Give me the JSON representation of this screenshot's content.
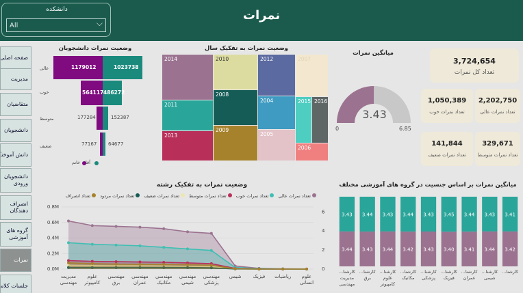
{
  "header": {
    "title": "نمرات"
  },
  "slicer": {
    "label": "دانشکده",
    "value": "All"
  },
  "nav": [
    {
      "label": "صفحه اصلی"
    },
    {
      "label": "مدیریت"
    },
    {
      "label": "متقاضیان"
    },
    {
      "label": "دانشجویان"
    },
    {
      "label": "دانش آموختگان"
    },
    {
      "label": "دانشجویان ورودی"
    },
    {
      "label": "انصراف دهندگان"
    },
    {
      "label": "گروه های آموزشی"
    },
    {
      "label": "نمرات"
    },
    {
      "label": "جلسات کلاس"
    }
  ],
  "funnel": {
    "title": "وضعیت نمرات دانشجویان",
    "rows": [
      {
        "label": "عالی",
        "female": 1179012,
        "male": 1023738,
        "female_text": "1179012",
        "male_text": "1023738"
      },
      {
        "label": "خوب",
        "female": 564117,
        "male": 486272,
        "female_text": "564117",
        "male_text": "486272"
      },
      {
        "label": "متوسط",
        "female": 177284,
        "male": 152387,
        "female_text": "177284",
        "male_text": "152387"
      },
      {
        "label": "ضعیف",
        "female": 77167,
        "male": 64677,
        "female_text": "77167",
        "male_text": "64677"
      }
    ],
    "legend": [
      {
        "name": "آقا",
        "color": "#1a8a7d"
      },
      {
        "name": "خانم",
        "color": "#800a80"
      }
    ]
  },
  "treemap": {
    "title": "وضعیت نمرات به تفکیک سال",
    "cells": [
      {
        "label": "2014",
        "color": "#9b7390"
      },
      {
        "label": "2011",
        "color": "#2aa59a"
      },
      {
        "label": "2013",
        "color": "#b8305a"
      },
      {
        "label": "2010",
        "color": "#dcdca0"
      },
      {
        "label": "2008",
        "color": "#165c56"
      },
      {
        "label": "2009",
        "color": "#a7822d"
      },
      {
        "label": "2012",
        "color": "#5b6aa0"
      },
      {
        "label": "2004",
        "color": "#3f9bc1"
      },
      {
        "label": "2005",
        "color": "#e3c2c8"
      },
      {
        "label": "2007",
        "color": "#f3e8cf"
      },
      {
        "label": "2015",
        "color": "#4ecdc1"
      },
      {
        "label": "2016",
        "color": "#5f6766"
      },
      {
        "label": "2006",
        "color": "#f08080"
      }
    ]
  },
  "gauge": {
    "title": "میانگین نمرات",
    "value": 3.43,
    "value_text": "3.43",
    "min_text": "0",
    "max_text": "6.85",
    "max": 6.85
  },
  "kpis": {
    "total": {
      "value": "3,724,654",
      "label": "تعداد کل نمرات"
    },
    "excellent": {
      "value": "2,202,750",
      "label": "تعداد نمرات عالی"
    },
    "good": {
      "value": "1,050,389",
      "label": "تعداد نمرات خوب"
    },
    "average": {
      "value": "329,671",
      "label": "تعداد نمرات متوسط"
    },
    "weak": {
      "value": "141,844",
      "label": "تعداد نمرات ضعیف"
    }
  },
  "area_chart": {
    "title": "وضعیت نمرات به تفکیک رشته",
    "legend": [
      {
        "name": "تعداد نمرات عالی",
        "color": "#9b7390"
      },
      {
        "name": "تعداد نمرات خوب",
        "color": "#3fbfb3"
      },
      {
        "name": "تعداد نمرات متوسط",
        "color": "#b8305a"
      },
      {
        "name": "تعداد نمرات ضعیف",
        "color": "#ece6b0"
      },
      {
        "name": "تعداد نمرات مردود",
        "color": "#165c56"
      },
      {
        "name": "تعداد انصراف",
        "color": "#a7822d"
      }
    ]
  },
  "column_chart": {
    "title": "میانگین نمرات بر اساس جنسیت در گروه های آموزشی مختلف"
  },
  "chart_data": [
    {
      "type": "area",
      "title": "وضعیت نمرات به تفکیک رشته",
      "categories": [
        "مدیریت مهندسی",
        "علوم کامپیوتر",
        "مهندسی برق",
        "مهندسی عمران",
        "مهندسی مکانیک",
        "مهندسی شیمی",
        "مهندسی پزشکی",
        "شیمی",
        "فیزیک",
        "ریاضیات",
        "علوم انسانی"
      ],
      "y_ticks": [
        "0.0M",
        "0.2M",
        "0.4M",
        "0.6M",
        "0.8M"
      ],
      "ylim": [
        0,
        0.4
      ],
      "y2_ticks": [
        "0",
        "2",
        "4",
        "6"
      ],
      "series": [
        {
          "name": "تعداد نمرات عالی",
          "color": "#9b7390",
          "values": [
            0.31,
            0.28,
            0.275,
            0.27,
            0.26,
            0.24,
            0.23,
            0.02,
            0.005,
            0.002,
            0.001
          ]
        },
        {
          "name": "تعداد نمرات خوب",
          "color": "#3fbfb3",
          "values": [
            0.17,
            0.16,
            0.155,
            0.15,
            0.14,
            0.13,
            0.12,
            0.01,
            0.003,
            0.001,
            0.0
          ]
        },
        {
          "name": "تعداد نمرات متوسط",
          "color": "#b8305a",
          "values": [
            0.055,
            0.05,
            0.048,
            0.046,
            0.044,
            0.04,
            0.035,
            0.004,
            0.001,
            0.0,
            0.0
          ]
        },
        {
          "name": "تعداد نمرات ضعیف",
          "color": "#ece6b0",
          "values": [
            0.025,
            0.023,
            0.022,
            0.021,
            0.02,
            0.018,
            0.016,
            0.002,
            0.0,
            0.0,
            0.0
          ]
        },
        {
          "name": "تعداد نمرات مردود",
          "color": "#165c56",
          "values": [
            0.01,
            0.01,
            0.01,
            0.01,
            0.01,
            0.01,
            0.008,
            0.001,
            0.0,
            0.0,
            0.0
          ]
        },
        {
          "name": "تعداد انصراف",
          "color": "#a7822d",
          "values": [
            0.04,
            0.035,
            0.032,
            0.03,
            0.03,
            0.028,
            0.025,
            0.002,
            0.0,
            0.0,
            0.0
          ]
        }
      ]
    },
    {
      "type": "bar",
      "title": "میانگین نمرات بر اساس جنسیت در گروه های آموزشی مختلف",
      "categories": [
        "مدیریت مهندسی",
        "کارشناسی برق",
        "کارشناسی علوم کامپیوتر",
        "کارشناسی مکانیک",
        "کارشناسی پزشکی",
        "کارشناسی فیزیک",
        "کارشناسی عمران",
        "کارشناسی شیمی",
        "کارشناسی"
      ],
      "cat_lines": [
        [
          "...کارشنا",
          "مدیریت",
          "مهندسی"
        ],
        [
          "...کارشنا",
          "برق"
        ],
        [
          "...کارشنا",
          "علوم",
          "کامپیوتر"
        ],
        [
          "...کارشنا",
          "مکانیک"
        ],
        [
          "...کارشنا",
          "پزشکی"
        ],
        [
          "...کارشنا",
          "فیزیک"
        ],
        [
          "...کارشنا",
          "عمران"
        ],
        [
          "...کارشنا",
          "شیمی"
        ],
        [
          "...کارشنا"
        ]
      ],
      "series": [
        {
          "name": "آقا",
          "color": "#2aa59a",
          "values": [
            3.43,
            3.44,
            3.43,
            3.44,
            3.43,
            3.45,
            3.44,
            3.43,
            3.41
          ],
          "labels": [
            "3.43",
            "3.44",
            "3.43",
            "3.44",
            "3.43",
            "3.45",
            "3.44",
            "3.43",
            "3.41"
          ]
        },
        {
          "name": "خانم",
          "color": "#9b7390",
          "values": [
            3.44,
            3.43,
            3.44,
            3.42,
            3.43,
            3.4,
            3.41,
            3.44,
            3.42
          ],
          "labels": [
            "3.44",
            "3.43",
            "3.44",
            "3.42",
            "3.43",
            "3.40",
            "3.41",
            "3.44",
            "3.42"
          ]
        }
      ]
    }
  ]
}
